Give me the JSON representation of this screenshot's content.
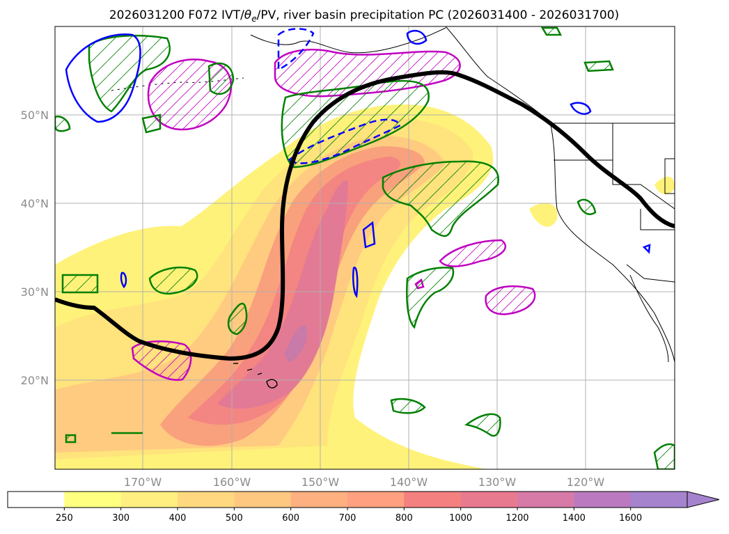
{
  "title_main": "2026031200 F072 IVT/",
  "title_theta": "θ",
  "title_sub": "e",
  "title_rest": "/PV, river basin precipitation PC (2026031400 - 2026031700)",
  "map": {
    "lon_range": [
      -180,
      -110
    ],
    "lat_range": [
      10,
      60
    ],
    "lon_ticks": [
      {
        "value": -170,
        "label": "170°W"
      },
      {
        "value": -160,
        "label": "160°W"
      },
      {
        "value": -150,
        "label": "150°W"
      },
      {
        "value": -140,
        "label": "140°W"
      },
      {
        "value": -130,
        "label": "130°W"
      },
      {
        "value": -120,
        "label": "120°W"
      }
    ],
    "lat_ticks": [
      {
        "value": 20,
        "label": "20°N"
      },
      {
        "value": 30,
        "label": "30°N"
      },
      {
        "value": 40,
        "label": "40°N"
      },
      {
        "value": 50,
        "label": "50°N"
      }
    ],
    "gridlines": true
  },
  "colorbar": {
    "levels": [
      "250",
      "300",
      "400",
      "500",
      "600",
      "700",
      "800",
      "1000",
      "1200",
      "1400",
      "1600"
    ],
    "colors": [
      "#ffffff",
      "#ffff80",
      "#ffef80",
      "#ffd880",
      "#ffc880",
      "#ffb080",
      "#ffa080",
      "#f58080",
      "#e87a90",
      "#d77aa8",
      "#bb7abf",
      "#a583cd"
    ],
    "extend": "max"
  },
  "colors": {
    "ivt_low": "#fff27a",
    "ivt_mid": "#ffd080",
    "ivt_high": "#f98a78",
    "ivt_core": "#e37a95",
    "theta_contour": "#000000",
    "pv_green": "#008000",
    "pv_blue": "#0000ff",
    "precip_magenta": "#c000c0"
  }
}
